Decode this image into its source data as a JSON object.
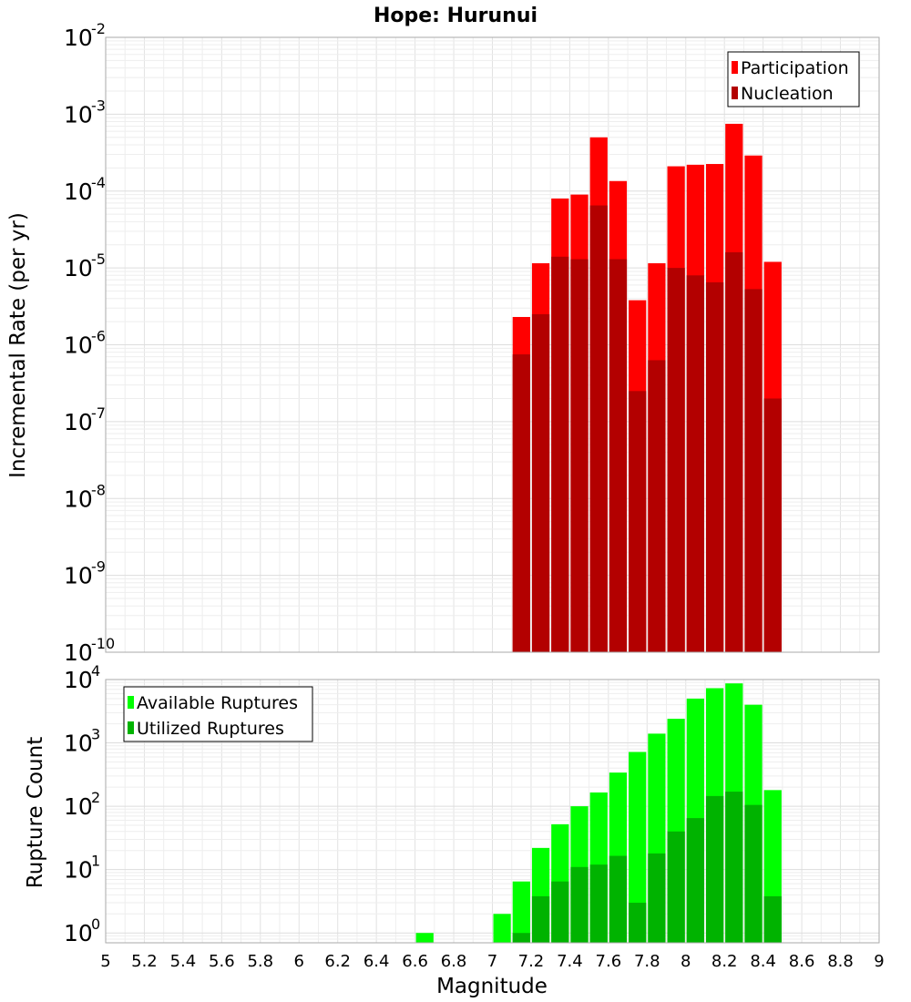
{
  "chart_data": [
    {
      "type": "bar",
      "title": "Hope: Hurunui",
      "ylabel": "Incremental Rate (per yr)",
      "yscale": "log",
      "ylim": [
        1e-10,
        0.01
      ],
      "y_tick_exponents": [
        -10,
        -9,
        -8,
        -7,
        -6,
        -5,
        -4,
        -3,
        -2
      ],
      "grid": true,
      "legend_position": "top-right",
      "bin_width": 0.1,
      "x": [
        7.15,
        7.25,
        7.35,
        7.45,
        7.55,
        7.65,
        7.75,
        7.85,
        7.95,
        8.05,
        8.15,
        8.25,
        8.35,
        8.45
      ],
      "series": [
        {
          "name": "Participation",
          "color": "#ff0000",
          "values": [
            2.3e-06,
            1.15e-05,
            8e-05,
            9e-05,
            0.0005,
            0.000135,
            3.8e-06,
            1.15e-05,
            0.00021,
            0.00022,
            0.000225,
            0.00075,
            0.00029,
            1.2e-05
          ]
        },
        {
          "name": "Nucleation",
          "color": "#b30000",
          "values": [
            7.5e-07,
            2.5e-06,
            1.4e-05,
            1.3e-05,
            6.5e-05,
            1.3e-05,
            2.5e-07,
            6.3e-07,
            1e-05,
            8e-06,
            6.5e-06,
            1.6e-05,
            5.3e-06,
            2e-07
          ]
        }
      ]
    },
    {
      "type": "bar",
      "xlabel": "Magnitude",
      "ylabel": "Rupture Count",
      "yscale": "log",
      "ylim": [
        0.7,
        10000
      ],
      "y_tick_exponents": [
        0,
        1,
        2,
        3,
        4
      ],
      "xlim": [
        5,
        9
      ],
      "x_ticks": [
        "5",
        "5.2",
        "5.4",
        "5.6",
        "5.8",
        "6",
        "6.2",
        "6.4",
        "6.6",
        "6.8",
        "7",
        "7.2",
        "7.4",
        "7.6",
        "7.8",
        "8",
        "8.2",
        "8.4",
        "8.6",
        "8.8",
        "9"
      ],
      "grid": true,
      "legend_position": "top-left",
      "bin_width": 0.1,
      "series": [
        {
          "name": "Available Ruptures",
          "color": "#00ff00",
          "x": [
            6.65,
            7.05,
            7.15,
            7.25,
            7.35,
            7.45,
            7.55,
            7.65,
            7.75,
            7.85,
            7.95,
            8.05,
            8.15,
            8.25,
            8.35,
            8.45
          ],
          "values": [
            1,
            2,
            6.5,
            22,
            52,
            100,
            165,
            340,
            720,
            1400,
            2400,
            5000,
            7300,
            8700,
            4000,
            180
          ]
        },
        {
          "name": "Utilized Ruptures",
          "color": "#00b300",
          "x": [
            7.15,
            7.25,
            7.35,
            7.45,
            7.55,
            7.65,
            7.75,
            7.85,
            7.95,
            8.05,
            8.15,
            8.25,
            8.35,
            8.45
          ],
          "values": [
            1,
            3.8,
            6.5,
            11,
            12,
            16.5,
            3,
            18,
            40,
            65,
            145,
            170,
            105,
            3.8
          ]
        }
      ]
    }
  ]
}
